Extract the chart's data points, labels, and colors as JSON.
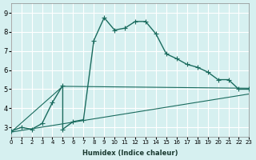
{
  "xlabel": "Humidex (Indice chaleur)",
  "bg_color": "#d6f0f0",
  "grid_color": "#ffffff",
  "line_color": "#1a6b5e",
  "xlim": [
    0,
    23
  ],
  "ylim": [
    2.5,
    9.5
  ],
  "xticks": [
    0,
    1,
    2,
    3,
    4,
    5,
    6,
    7,
    8,
    9,
    10,
    11,
    12,
    13,
    14,
    15,
    16,
    17,
    18,
    19,
    20,
    21,
    22,
    23
  ],
  "yticks": [
    3,
    4,
    5,
    6,
    7,
    8,
    9
  ],
  "line1_x": [
    0,
    1,
    2,
    3,
    4,
    5,
    5,
    6,
    7,
    8,
    9,
    10,
    11,
    12,
    13,
    14,
    15,
    16,
    17,
    18,
    19,
    20,
    21,
    22,
    23
  ],
  "line1_y": [
    2.8,
    3.0,
    2.9,
    3.2,
    4.3,
    5.2,
    2.9,
    3.3,
    3.4,
    7.55,
    8.75,
    8.1,
    8.2,
    8.55,
    8.55,
    7.9,
    6.85,
    6.6,
    6.3,
    6.15,
    5.9,
    5.5,
    5.5,
    5.0,
    5.0
  ],
  "line2_x": [
    0,
    5,
    5,
    23
  ],
  "line2_y": [
    2.75,
    5.15,
    5.15,
    5.05
  ],
  "line3_x": [
    0,
    23
  ],
  "line3_y": [
    2.75,
    4.75
  ]
}
